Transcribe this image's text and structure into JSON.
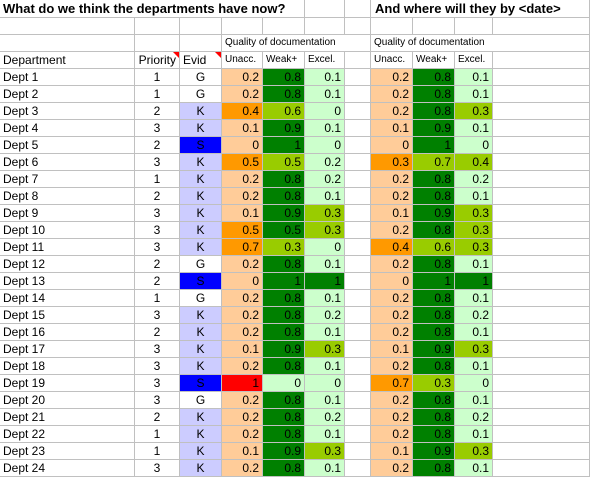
{
  "sheet": {
    "title_now": "What do we think the departments have now?",
    "title_future": "And where will they by <date>",
    "quality_header": "Quality of documentation",
    "columns": {
      "department": "Department",
      "priority": "Priority",
      "evid": "Evid",
      "unacc": "Unacc.",
      "weak": "Weak+",
      "excel": "Excel."
    },
    "rows": [
      {
        "department": "Dept 1",
        "priority": 1,
        "evid": "G",
        "evid_color": "#ffffff",
        "now": [
          0.2,
          0.8,
          0.1
        ],
        "now_colors": [
          "#ffcc99",
          "#008000",
          "#ccffcc"
        ],
        "future": [
          0.2,
          0.8,
          0.1
        ],
        "future_colors": [
          "#ffcc99",
          "#008000",
          "#ccffcc"
        ]
      },
      {
        "department": "Dept 2",
        "priority": 1,
        "evid": "G",
        "evid_color": "#ffffff",
        "now": [
          0.2,
          0.8,
          0.1
        ],
        "now_colors": [
          "#ffcc99",
          "#008000",
          "#ccffcc"
        ],
        "future": [
          0.2,
          0.8,
          0.1
        ],
        "future_colors": [
          "#ffcc99",
          "#008000",
          "#ccffcc"
        ]
      },
      {
        "department": "Dept 3",
        "priority": 2,
        "evid": "K",
        "evid_color": "#ccccff",
        "now": [
          0.4,
          0.6,
          0
        ],
        "now_colors": [
          "#ff9900",
          "#99cc00",
          "#ccffcc"
        ],
        "future": [
          0.2,
          0.8,
          0.3
        ],
        "future_colors": [
          "#ffcc99",
          "#008000",
          "#99cc00"
        ]
      },
      {
        "department": "Dept 4",
        "priority": 3,
        "evid": "K",
        "evid_color": "#ccccff",
        "now": [
          0.1,
          0.9,
          0.1
        ],
        "now_colors": [
          "#ffcc99",
          "#008000",
          "#ccffcc"
        ],
        "future": [
          0.1,
          0.9,
          0.1
        ],
        "future_colors": [
          "#ffcc99",
          "#008000",
          "#ccffcc"
        ]
      },
      {
        "department": "Dept 5",
        "priority": 2,
        "evid": "S",
        "evid_color": "#0000ff",
        "now": [
          0,
          1,
          0
        ],
        "now_colors": [
          "#ffcc99",
          "#008000",
          "#ccffcc"
        ],
        "future": [
          0,
          1,
          0
        ],
        "future_colors": [
          "#ffcc99",
          "#008000",
          "#ccffcc"
        ]
      },
      {
        "department": "Dept 6",
        "priority": 3,
        "evid": "K",
        "evid_color": "#ccccff",
        "now": [
          0.5,
          0.5,
          0.2
        ],
        "now_colors": [
          "#ff9900",
          "#99cc00",
          "#ccffcc"
        ],
        "future": [
          0.3,
          0.7,
          0.4
        ],
        "future_colors": [
          "#ff9900",
          "#99cc00",
          "#99cc00"
        ]
      },
      {
        "department": "Dept 7",
        "priority": 1,
        "evid": "K",
        "evid_color": "#ccccff",
        "now": [
          0.2,
          0.8,
          0.2
        ],
        "now_colors": [
          "#ffcc99",
          "#008000",
          "#ccffcc"
        ],
        "future": [
          0.2,
          0.8,
          0.2
        ],
        "future_colors": [
          "#ffcc99",
          "#008000",
          "#ccffcc"
        ]
      },
      {
        "department": "Dept 8",
        "priority": 2,
        "evid": "K",
        "evid_color": "#ccccff",
        "now": [
          0.2,
          0.8,
          0.1
        ],
        "now_colors": [
          "#ffcc99",
          "#008000",
          "#ccffcc"
        ],
        "future": [
          0.2,
          0.8,
          0.1
        ],
        "future_colors": [
          "#ffcc99",
          "#008000",
          "#ccffcc"
        ]
      },
      {
        "department": "Dept 9",
        "priority": 3,
        "evid": "K",
        "evid_color": "#ccccff",
        "now": [
          0.1,
          0.9,
          0.3
        ],
        "now_colors": [
          "#ffcc99",
          "#008000",
          "#99cc00"
        ],
        "future": [
          0.1,
          0.9,
          0.3
        ],
        "future_colors": [
          "#ffcc99",
          "#008000",
          "#99cc00"
        ]
      },
      {
        "department": "Dept 10",
        "priority": 3,
        "evid": "K",
        "evid_color": "#ccccff",
        "now": [
          0.5,
          0.5,
          0.3
        ],
        "now_colors": [
          "#ff9900",
          "#008000",
          "#99cc00"
        ],
        "future": [
          0.2,
          0.8,
          0.3
        ],
        "future_colors": [
          "#ffcc99",
          "#008000",
          "#99cc00"
        ]
      },
      {
        "department": "Dept 11",
        "priority": 3,
        "evid": "K",
        "evid_color": "#ccccff",
        "now": [
          0.7,
          0.3,
          0
        ],
        "now_colors": [
          "#ff9900",
          "#99cc00",
          "#ccffcc"
        ],
        "future": [
          0.4,
          0.6,
          0.3
        ],
        "future_colors": [
          "#ff9900",
          "#99cc00",
          "#99cc00"
        ]
      },
      {
        "department": "Dept 12",
        "priority": 2,
        "evid": "G",
        "evid_color": "#ffffff",
        "now": [
          0.2,
          0.8,
          0.1
        ],
        "now_colors": [
          "#ffcc99",
          "#008000",
          "#ccffcc"
        ],
        "future": [
          0.2,
          0.8,
          0.1
        ],
        "future_colors": [
          "#ffcc99",
          "#008000",
          "#ccffcc"
        ]
      },
      {
        "department": "Dept 13",
        "priority": 2,
        "evid": "S",
        "evid_color": "#0000ff",
        "now": [
          0,
          1,
          1
        ],
        "now_colors": [
          "#ffcc99",
          "#008000",
          "#008000"
        ],
        "future": [
          0,
          1,
          1
        ],
        "future_colors": [
          "#ffcc99",
          "#008000",
          "#008000"
        ]
      },
      {
        "department": "Dept 14",
        "priority": 1,
        "evid": "G",
        "evid_color": "#ffffff",
        "now": [
          0.2,
          0.8,
          0.1
        ],
        "now_colors": [
          "#ffcc99",
          "#008000",
          "#ccffcc"
        ],
        "future": [
          0.2,
          0.8,
          0.1
        ],
        "future_colors": [
          "#ffcc99",
          "#008000",
          "#ccffcc"
        ]
      },
      {
        "department": "Dept 15",
        "priority": 3,
        "evid": "K",
        "evid_color": "#ccccff",
        "now": [
          0.2,
          0.8,
          0.2
        ],
        "now_colors": [
          "#ffcc99",
          "#008000",
          "#ccffcc"
        ],
        "future": [
          0.2,
          0.8,
          0.2
        ],
        "future_colors": [
          "#ffcc99",
          "#008000",
          "#ccffcc"
        ]
      },
      {
        "department": "Dept 16",
        "priority": 2,
        "evid": "K",
        "evid_color": "#ccccff",
        "now": [
          0.2,
          0.8,
          0.1
        ],
        "now_colors": [
          "#ffcc99",
          "#008000",
          "#ccffcc"
        ],
        "future": [
          0.2,
          0.8,
          0.1
        ],
        "future_colors": [
          "#ffcc99",
          "#008000",
          "#ccffcc"
        ]
      },
      {
        "department": "Dept 17",
        "priority": 3,
        "evid": "K",
        "evid_color": "#ccccff",
        "now": [
          0.1,
          0.9,
          0.3
        ],
        "now_colors": [
          "#ffcc99",
          "#008000",
          "#99cc00"
        ],
        "future": [
          0.1,
          0.9,
          0.3
        ],
        "future_colors": [
          "#ffcc99",
          "#008000",
          "#99cc00"
        ]
      },
      {
        "department": "Dept 18",
        "priority": 3,
        "evid": "K",
        "evid_color": "#ccccff",
        "now": [
          0.2,
          0.8,
          0.1
        ],
        "now_colors": [
          "#ffcc99",
          "#008000",
          "#ccffcc"
        ],
        "future": [
          0.2,
          0.8,
          0.1
        ],
        "future_colors": [
          "#ffcc99",
          "#008000",
          "#ccffcc"
        ]
      },
      {
        "department": "Dept 19",
        "priority": 3,
        "evid": "S",
        "evid_color": "#0000ff",
        "now": [
          1,
          0,
          0
        ],
        "now_colors": [
          "#ff0000",
          "#ccffcc",
          "#ccffcc"
        ],
        "future": [
          0.7,
          0.3,
          0
        ],
        "future_colors": [
          "#ff9900",
          "#99cc00",
          "#ccffcc"
        ]
      },
      {
        "department": "Dept 20",
        "priority": 3,
        "evid": "G",
        "evid_color": "#ffffff",
        "now": [
          0.2,
          0.8,
          0.1
        ],
        "now_colors": [
          "#ffcc99",
          "#008000",
          "#ccffcc"
        ],
        "future": [
          0.2,
          0.8,
          0.1
        ],
        "future_colors": [
          "#ffcc99",
          "#008000",
          "#ccffcc"
        ]
      },
      {
        "department": "Dept 21",
        "priority": 2,
        "evid": "K",
        "evid_color": "#ccccff",
        "now": [
          0.2,
          0.8,
          0.2
        ],
        "now_colors": [
          "#ffcc99",
          "#008000",
          "#ccffcc"
        ],
        "future": [
          0.2,
          0.8,
          0.2
        ],
        "future_colors": [
          "#ffcc99",
          "#008000",
          "#ccffcc"
        ]
      },
      {
        "department": "Dept 22",
        "priority": 1,
        "evid": "K",
        "evid_color": "#ccccff",
        "now": [
          0.2,
          0.8,
          0.1
        ],
        "now_colors": [
          "#ffcc99",
          "#008000",
          "#ccffcc"
        ],
        "future": [
          0.2,
          0.8,
          0.1
        ],
        "future_colors": [
          "#ffcc99",
          "#008000",
          "#ccffcc"
        ]
      },
      {
        "department": "Dept 23",
        "priority": 1,
        "evid": "K",
        "evid_color": "#ccccff",
        "now": [
          0.1,
          0.9,
          0.3
        ],
        "now_colors": [
          "#ffcc99",
          "#008000",
          "#99cc00"
        ],
        "future": [
          0.1,
          0.9,
          0.3
        ],
        "future_colors": [
          "#ffcc99",
          "#008000",
          "#99cc00"
        ]
      },
      {
        "department": "Dept 24",
        "priority": 3,
        "evid": "K",
        "evid_color": "#ccccff",
        "now": [
          0.2,
          0.8,
          0.1
        ],
        "now_colors": [
          "#ffcc99",
          "#008000",
          "#ccffcc"
        ],
        "future": [
          0.2,
          0.8,
          0.1
        ],
        "future_colors": [
          "#ffcc99",
          "#008000",
          "#ccffcc"
        ]
      }
    ]
  }
}
